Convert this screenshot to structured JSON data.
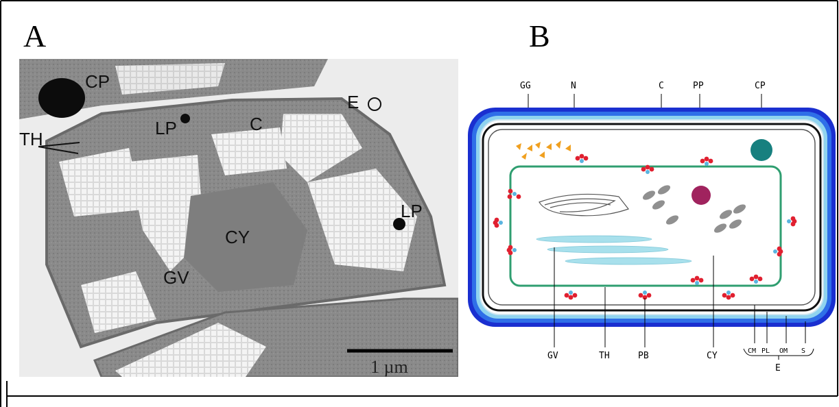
{
  "panel_a": {
    "letter": "A",
    "labels": {
      "cp": "CP",
      "e": "E",
      "th": "TH",
      "lp_top": "LP",
      "c": "C",
      "lp_right": "LP",
      "cy": "CY",
      "gv": "GV"
    },
    "scale_bar": "1 µm"
  },
  "panel_b": {
    "letter": "B",
    "top_labels": {
      "gg": "GG",
      "n": "N",
      "c": "C",
      "pp": "PP",
      "cp": "CP"
    },
    "bottom_labels": {
      "gv": "GV",
      "th": "TH",
      "pb": "PB",
      "cy": "CY",
      "cm": "CM",
      "pl": "PL",
      "om": "OM",
      "s": "S",
      "e": "E"
    },
    "colors": {
      "outer_layer": "#1a2fd0",
      "sheath": "#8fd3ef",
      "thylakoid": "#2f9e70",
      "polyphosphate": "#a0235e",
      "carboxysome_outer": "#17807f",
      "glycogen": "#f0a020",
      "phycobilisome": "#e02030",
      "gas_vesicle": "#a8e0ec",
      "cyanophycin": "#909090"
    }
  }
}
